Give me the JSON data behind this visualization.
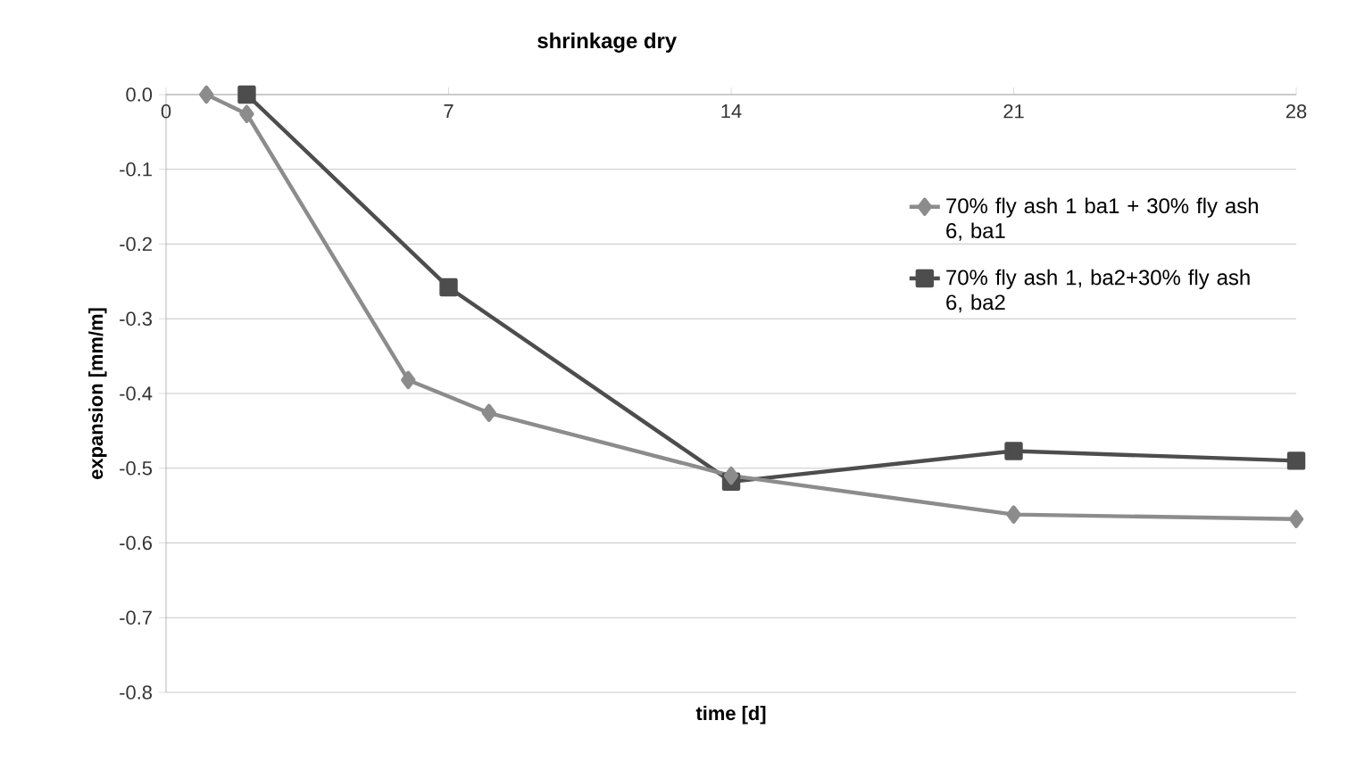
{
  "chart_data": {
    "type": "line",
    "title": "shrinkage dry",
    "xlabel": "time [d]",
    "ylabel": "expansion [mm/m]",
    "xlim": [
      0,
      28
    ],
    "xticks": [
      0,
      7,
      14,
      21,
      28
    ],
    "ylim": [
      -0.8,
      0
    ],
    "yticks": [
      {
        "value": 0,
        "label": "0.0"
      },
      -0.1,
      -0.2,
      -0.3,
      -0.4,
      -0.5,
      -0.6,
      -0.7,
      -0.8
    ],
    "grid": "y",
    "legend": "right",
    "line_style": "solid",
    "series": [
      {
        "name": "70% fly ash 1 ba1 + 30% fly ash 6, ba1",
        "color": "#8c8c8c",
        "marker": "diamond",
        "x": [
          1,
          2,
          6,
          8,
          14,
          21,
          28
        ],
        "values": [
          0.0,
          -0.026,
          -0.382,
          -0.426,
          -0.51,
          -0.562,
          -0.568
        ]
      },
      {
        "name": "70% fly ash 1, ba2+30% fly ash 6, ba2",
        "color": "#4d4d4d",
        "marker": "square",
        "x": [
          2,
          7,
          14,
          21,
          28
        ],
        "values": [
          0.0,
          -0.258,
          -0.518,
          -0.477,
          -0.49
        ]
      }
    ]
  }
}
